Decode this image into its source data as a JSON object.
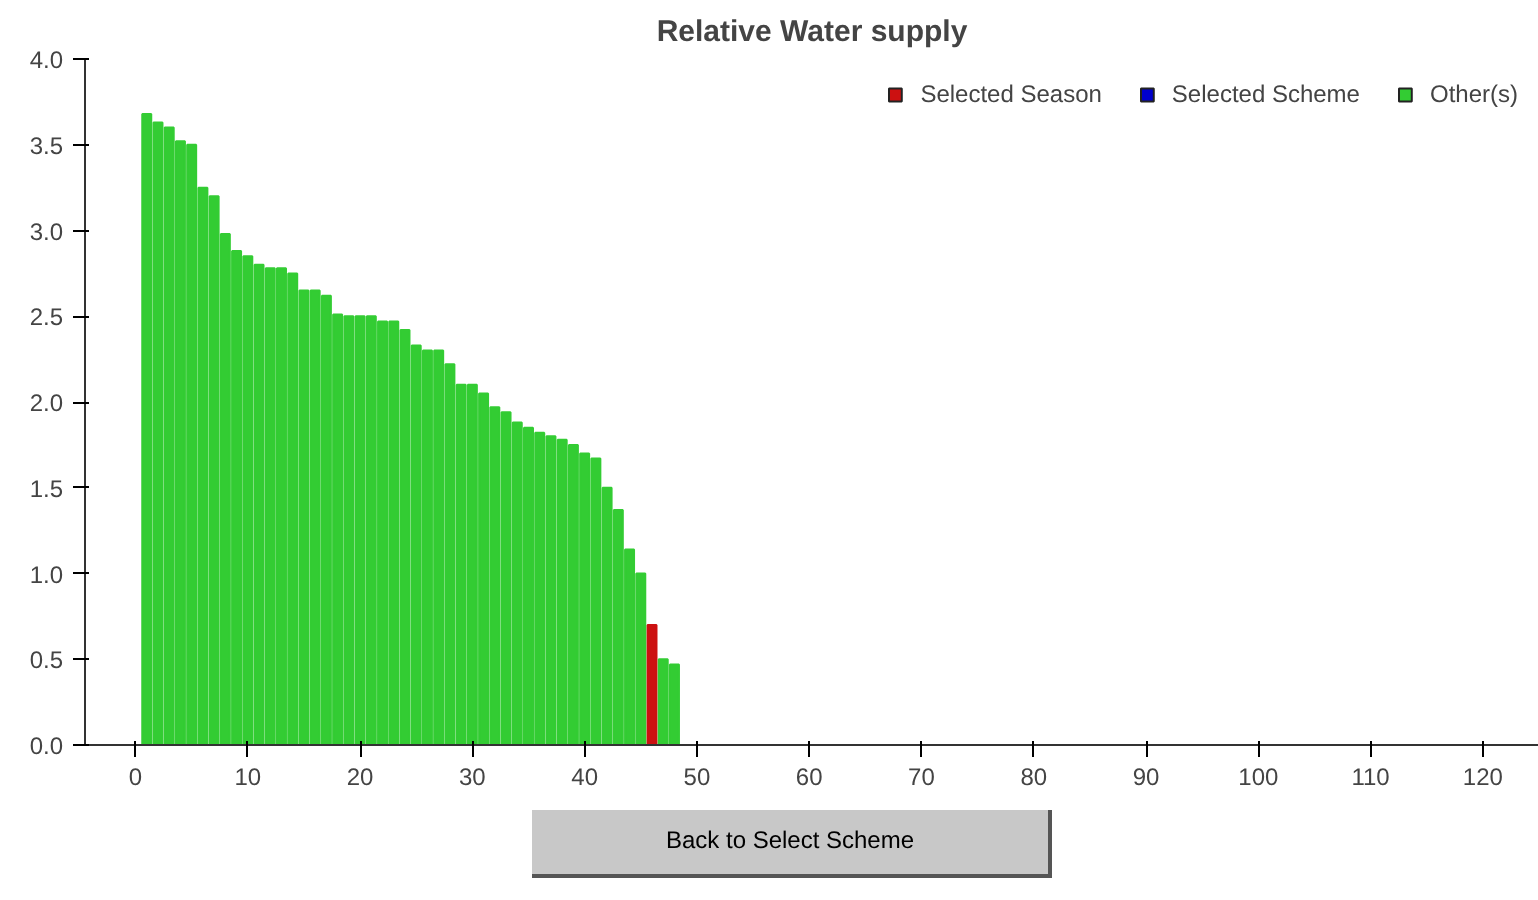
{
  "chart_data": {
    "type": "bar",
    "title": "Relative Water supply",
    "x": [
      1,
      2,
      3,
      4,
      5,
      6,
      7,
      8,
      9,
      10,
      11,
      12,
      13,
      14,
      15,
      16,
      17,
      18,
      19,
      20,
      21,
      22,
      23,
      24,
      25,
      26,
      27,
      28,
      29,
      30,
      31,
      32,
      33,
      34,
      35,
      36,
      37,
      38,
      39,
      40,
      41,
      42,
      43,
      44,
      45,
      46,
      47,
      48,
      49,
      50,
      51,
      52,
      53,
      54,
      55,
      56,
      57,
      58,
      59,
      60,
      61,
      62,
      63,
      64,
      65,
      66,
      67,
      68,
      69,
      70,
      71,
      72,
      73,
      74,
      75,
      76,
      77,
      78,
      79,
      80,
      81,
      82,
      83,
      84,
      85,
      86,
      87,
      88,
      89,
      90,
      91,
      92,
      93,
      94,
      95,
      96,
      97,
      98,
      99,
      100,
      101,
      102,
      103,
      104,
      105,
      106,
      107,
      108,
      109,
      110,
      111,
      112,
      113,
      114,
      115,
      116
    ],
    "series": [
      {
        "name": "Selected Season",
        "color": "#cc1111",
        "values": [
          null,
          null,
          null,
          null,
          null,
          null,
          null,
          null,
          null,
          null,
          null,
          null,
          null,
          null,
          null,
          null,
          null,
          null,
          null,
          null,
          null,
          null,
          null,
          null,
          null,
          null,
          null,
          null,
          null,
          null,
          null,
          null,
          null,
          null,
          null,
          null,
          null,
          null,
          null,
          null,
          null,
          null,
          null,
          null,
          null,
          0.7,
          null,
          null,
          null,
          null,
          null,
          null,
          null,
          null,
          null,
          null,
          null,
          null,
          null,
          null,
          null,
          null,
          null,
          null,
          null,
          null,
          null,
          null,
          null,
          null,
          null,
          null,
          null,
          null,
          null,
          null,
          null,
          null,
          null,
          null,
          null,
          null,
          null,
          null,
          null,
          null,
          null,
          null,
          null,
          null,
          null,
          null,
          null,
          null,
          null,
          null,
          null,
          null,
          null,
          null,
          null,
          null,
          null,
          null,
          null,
          null,
          null,
          null,
          null,
          null,
          null,
          null,
          null,
          null,
          null,
          null
        ]
      },
      {
        "name": "Selected Scheme",
        "color": "#0000cc",
        "values": [
          null,
          null,
          null,
          null,
          null,
          null,
          null,
          null,
          null,
          null,
          null,
          null,
          null,
          null,
          null,
          null,
          null,
          null,
          null,
          null,
          null,
          null,
          null,
          null,
          null,
          null,
          null,
          null,
          null,
          null,
          null,
          null,
          null,
          null,
          null,
          null,
          null,
          null,
          null,
          null,
          null,
          null,
          null,
          null,
          null,
          null,
          null,
          null,
          null,
          null,
          null,
          null,
          null,
          null,
          null,
          null,
          null,
          null,
          null,
          null,
          null,
          null,
          null,
          null,
          null,
          null,
          null,
          null,
          null,
          null,
          null,
          null,
          null,
          null,
          null,
          null,
          null,
          null,
          null,
          null,
          null,
          null,
          null,
          null,
          null,
          null,
          null,
          null,
          null,
          null,
          null,
          null,
          null,
          null,
          null,
          null,
          null,
          null,
          null,
          null,
          null,
          null,
          null,
          null,
          null,
          null,
          null,
          null,
          null,
          null,
          null,
          null,
          null,
          null,
          null,
          null
        ]
      },
      {
        "name": "Other(s)",
        "color": "#33cc33",
        "values": [
          3.68,
          3.63,
          3.6,
          3.52,
          3.5,
          3.25,
          3.2,
          2.98,
          2.88,
          2.85,
          2.8,
          2.78,
          2.78,
          2.75,
          2.65,
          2.65,
          2.62,
          2.51,
          2.5,
          2.5,
          2.5,
          2.47,
          2.47,
          2.42,
          2.33,
          2.3,
          2.3,
          2.22,
          2.1,
          2.1,
          2.05,
          1.97,
          1.94,
          1.88,
          1.85,
          1.82,
          1.8,
          1.78,
          1.75,
          1.7,
          1.67,
          1.5,
          1.37,
          1.14,
          1.0,
          null,
          0.5,
          0.47,
          0,
          0,
          0,
          0,
          0,
          0,
          0,
          0,
          0,
          0,
          0,
          0,
          0,
          0,
          0,
          0,
          0,
          0,
          0,
          0,
          0,
          0,
          0,
          0,
          0,
          0,
          0,
          0,
          0,
          0,
          0,
          0,
          0,
          0,
          0,
          0,
          0,
          0,
          0,
          0,
          0,
          0,
          0,
          0,
          0,
          0,
          0,
          0,
          0,
          0,
          0,
          0,
          0,
          0,
          0,
          0,
          0,
          0,
          0,
          0,
          0,
          0,
          0,
          0,
          0,
          0,
          0,
          0
        ]
      }
    ],
    "xlim": [
      -4.5,
      125
    ],
    "xticks": [
      0,
      10,
      20,
      30,
      40,
      50,
      60,
      70,
      80,
      90,
      100,
      110,
      120
    ],
    "ylim": [
      0,
      4.0
    ],
    "yticks": [
      {
        "value": 0,
        "label": "0.0"
      },
      {
        "value": 0.5,
        "label": "0.5"
      },
      {
        "value": 1.0,
        "label": "1.0"
      },
      {
        "value": 1.5,
        "label": "1.5"
      },
      {
        "value": 2.0,
        "label": "2.0"
      },
      {
        "value": 2.5,
        "label": "2.5"
      },
      {
        "value": 3.0,
        "label": "3.0"
      },
      {
        "value": 3.5,
        "label": "3.5"
      },
      {
        "value": 4.0,
        "label": "4.0"
      }
    ],
    "grid": false,
    "legend": "top right",
    "annotations": [
      "Back to Select Scheme"
    ]
  }
}
